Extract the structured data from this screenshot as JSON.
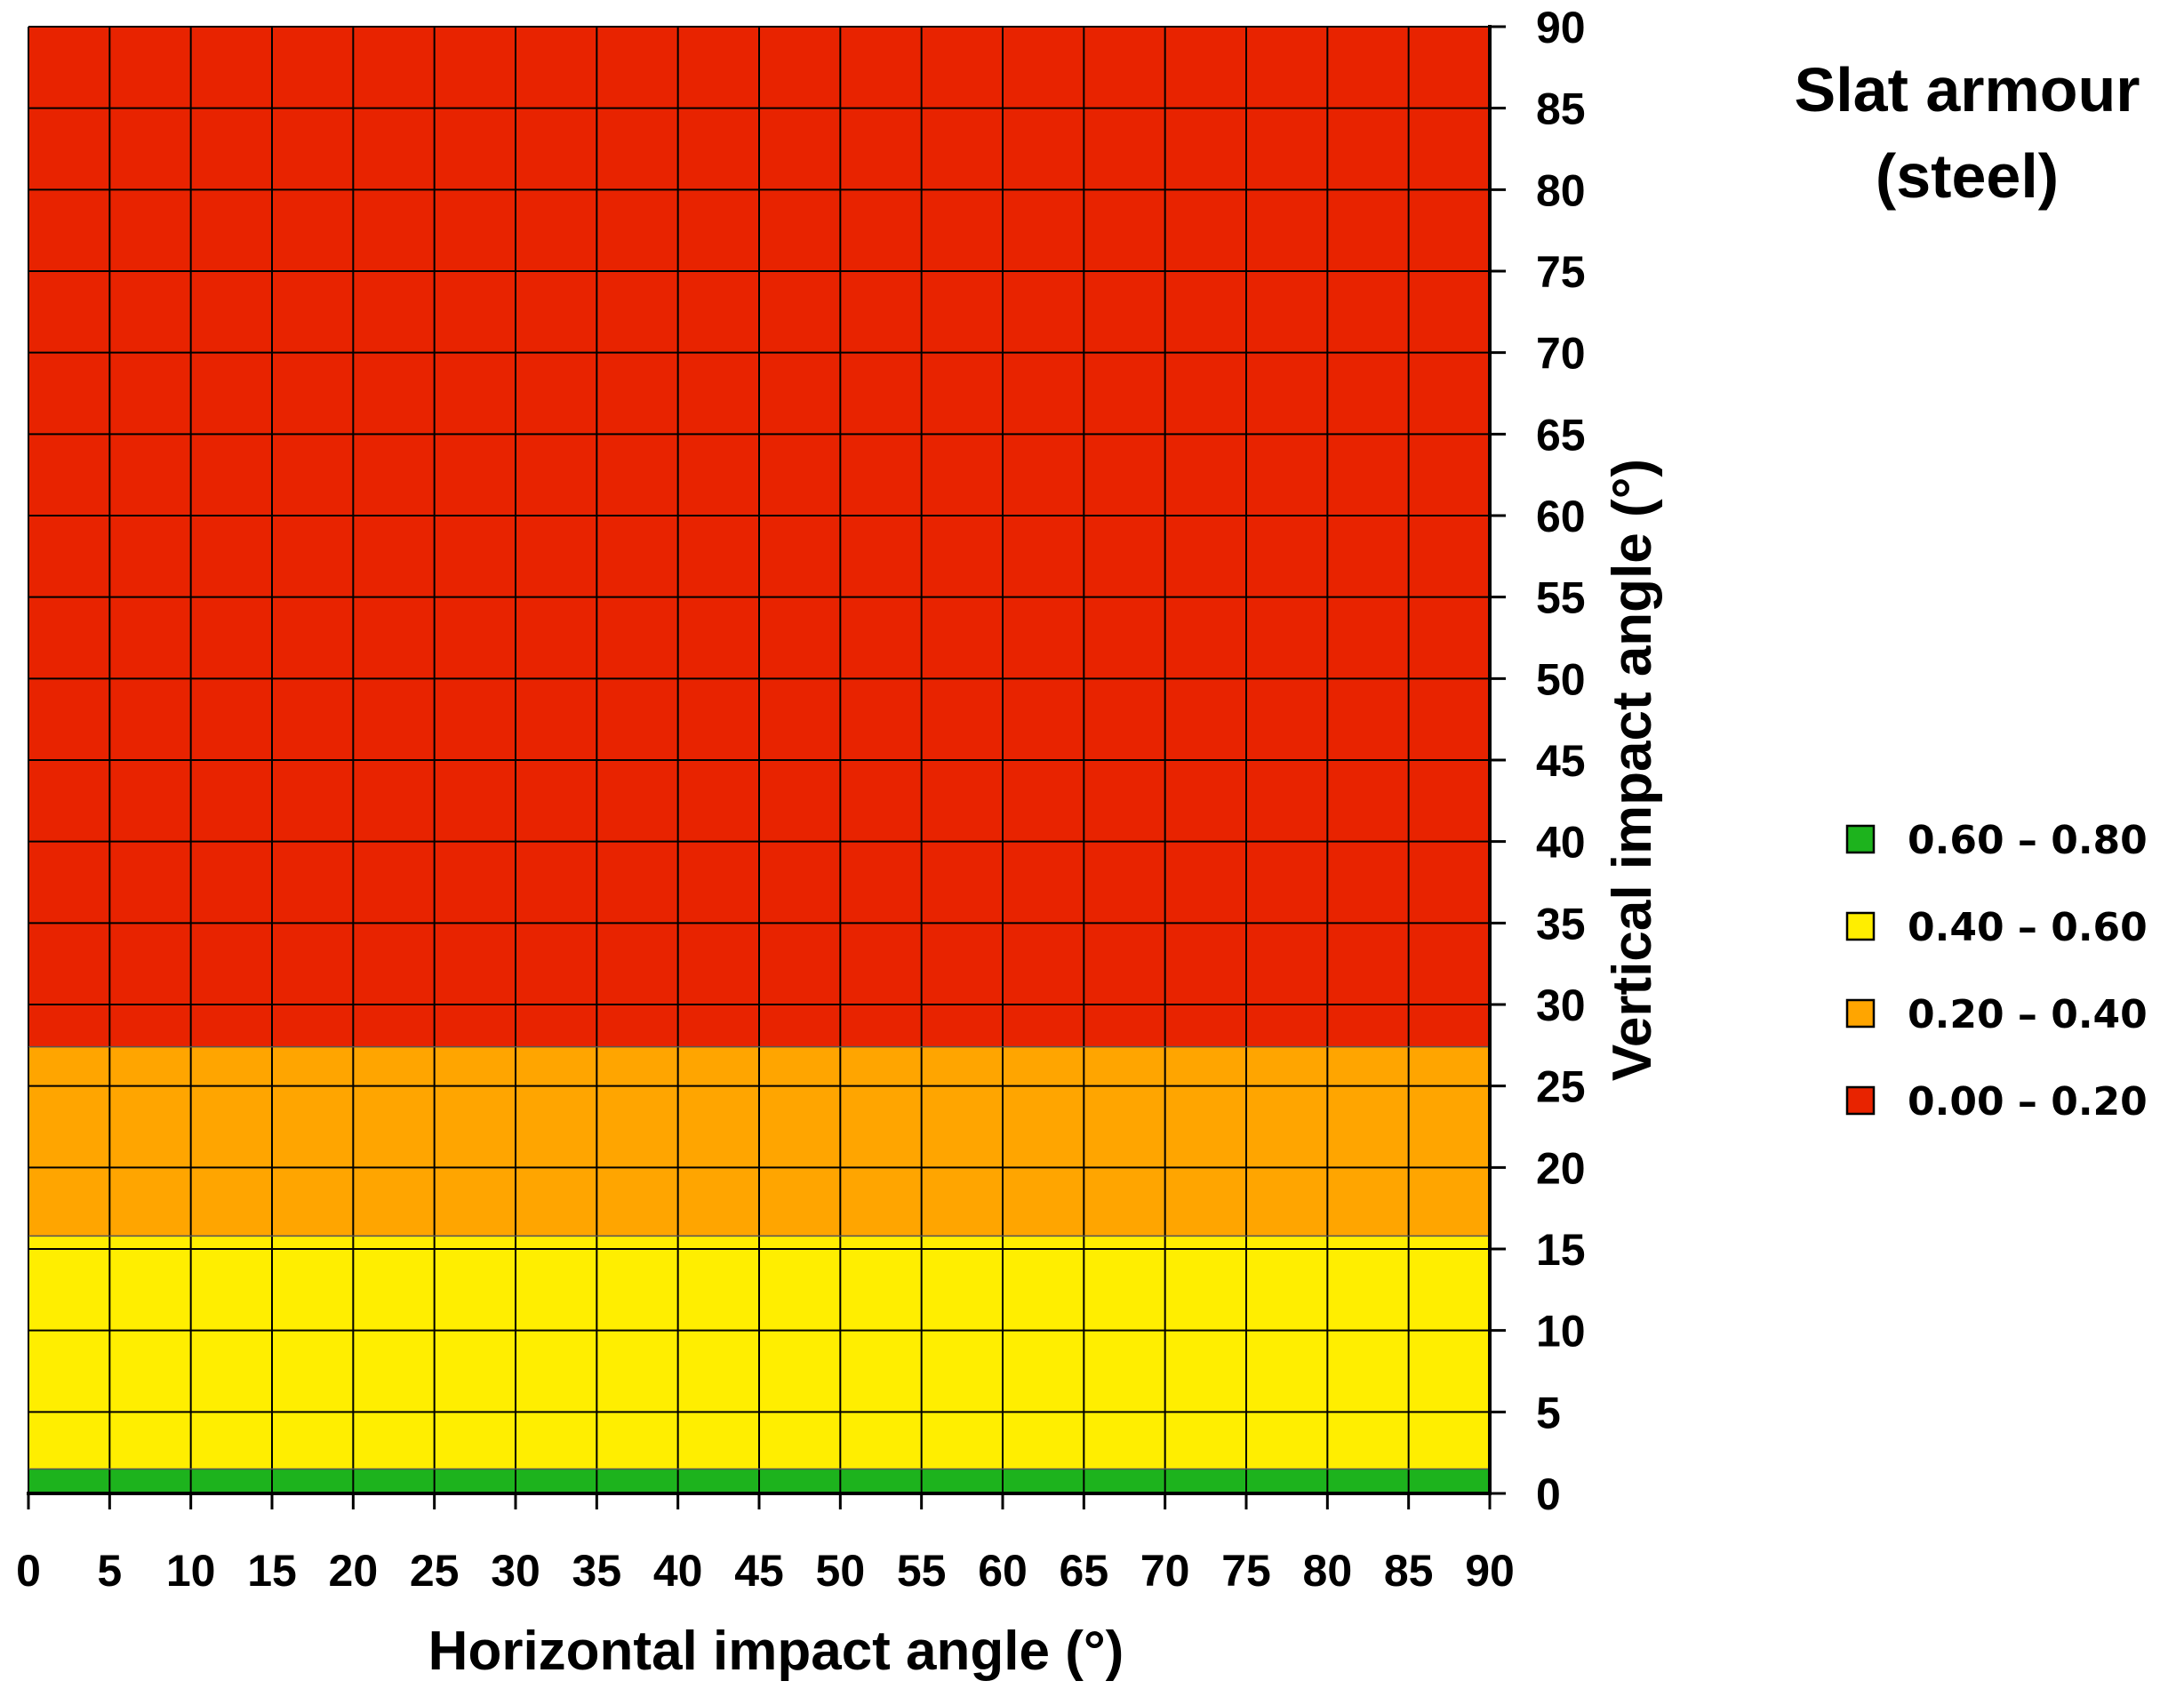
{
  "chart_data": {
    "type": "heatmap",
    "title_lines": [
      "Slat armour",
      "(steel)"
    ],
    "xlabel": "Horizontal impact angle (°)",
    "ylabel": "Vertical impact angle (°)",
    "x_ticks": [
      "0",
      "5",
      "10",
      "15",
      "20",
      "25",
      "30",
      "35",
      "40",
      "45",
      "50",
      "55",
      "60",
      "65",
      "70",
      "75",
      "80",
      "85",
      "90"
    ],
    "y_ticks": [
      "0",
      "5",
      "10",
      "15",
      "20",
      "25",
      "30",
      "35",
      "40",
      "45",
      "50",
      "55",
      "60",
      "65",
      "70",
      "75",
      "80",
      "85",
      "90"
    ],
    "xlim": [
      0,
      90
    ],
    "ylim": [
      0,
      90
    ],
    "grid": true,
    "legend_position": "right",
    "legend": [
      {
        "label": "0.60 – 0.80",
        "color": "#1db31d"
      },
      {
        "label": "0.40 – 0.60",
        "color": "#ffee00"
      },
      {
        "label": "0.20 – 0.40",
        "color": "#ffa500"
      },
      {
        "label": "0.00 – 0.20",
        "color": "#e82300"
      }
    ],
    "bands": [
      {
        "y_from": 0,
        "y_to": 1.5,
        "range": "0.60 – 0.80",
        "color": "#1db31d"
      },
      {
        "y_from": 1.5,
        "y_to": 15.8,
        "range": "0.40 – 0.60",
        "color": "#ffee00"
      },
      {
        "y_from": 15.8,
        "y_to": 27.4,
        "range": "0.20 – 0.40",
        "color": "#ffa500"
      },
      {
        "y_from": 27.4,
        "y_to": 90,
        "range": "0.00 – 0.20",
        "color": "#e82300"
      }
    ]
  }
}
